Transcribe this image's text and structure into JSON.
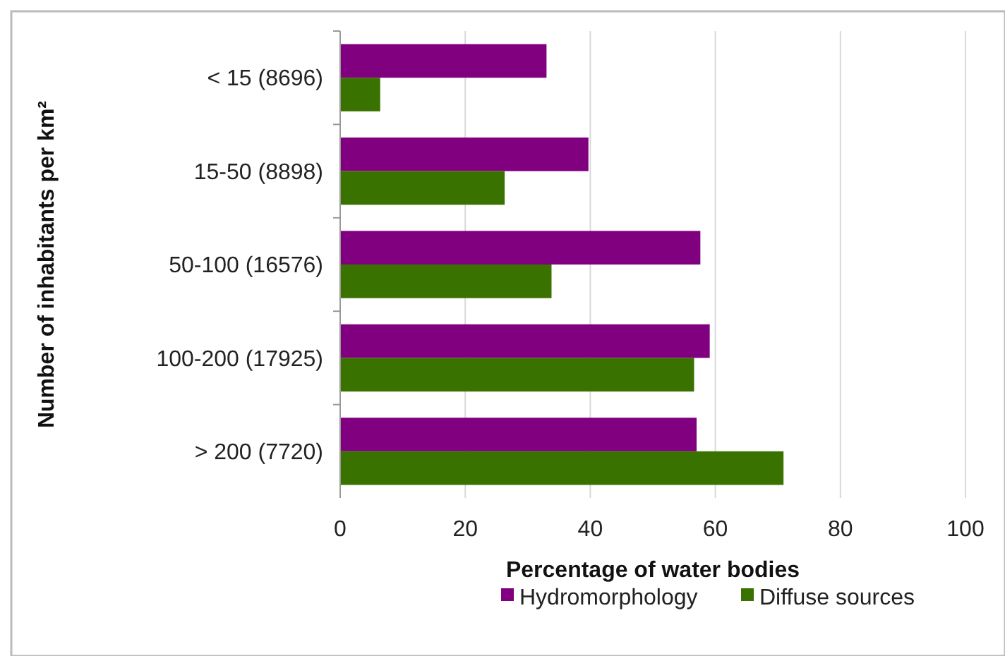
{
  "chart_data": {
    "type": "bar",
    "orientation": "horizontal",
    "categories": [
      "< 15 (8696)",
      "15-50 (8898)",
      "50-100 (16576)",
      "100-200 (17925)",
      "> 200 (7720)"
    ],
    "series": [
      {
        "name": "Hydromorphology",
        "color": "#800080",
        "values": [
          33,
          39.7,
          57.6,
          59.1,
          57
        ]
      },
      {
        "name": "Diffuse sources",
        "color": "#3a7200",
        "values": [
          6.4,
          26.3,
          33.8,
          56.6,
          70.9
        ]
      }
    ],
    "xlim": [
      0,
      100
    ],
    "xticks": [
      0,
      20,
      40,
      60,
      80,
      100
    ],
    "grid": "x",
    "legend": "bottom",
    "xlabel": "Percentage of water bodies",
    "ylabel": "Number of inhabitants per km²"
  }
}
